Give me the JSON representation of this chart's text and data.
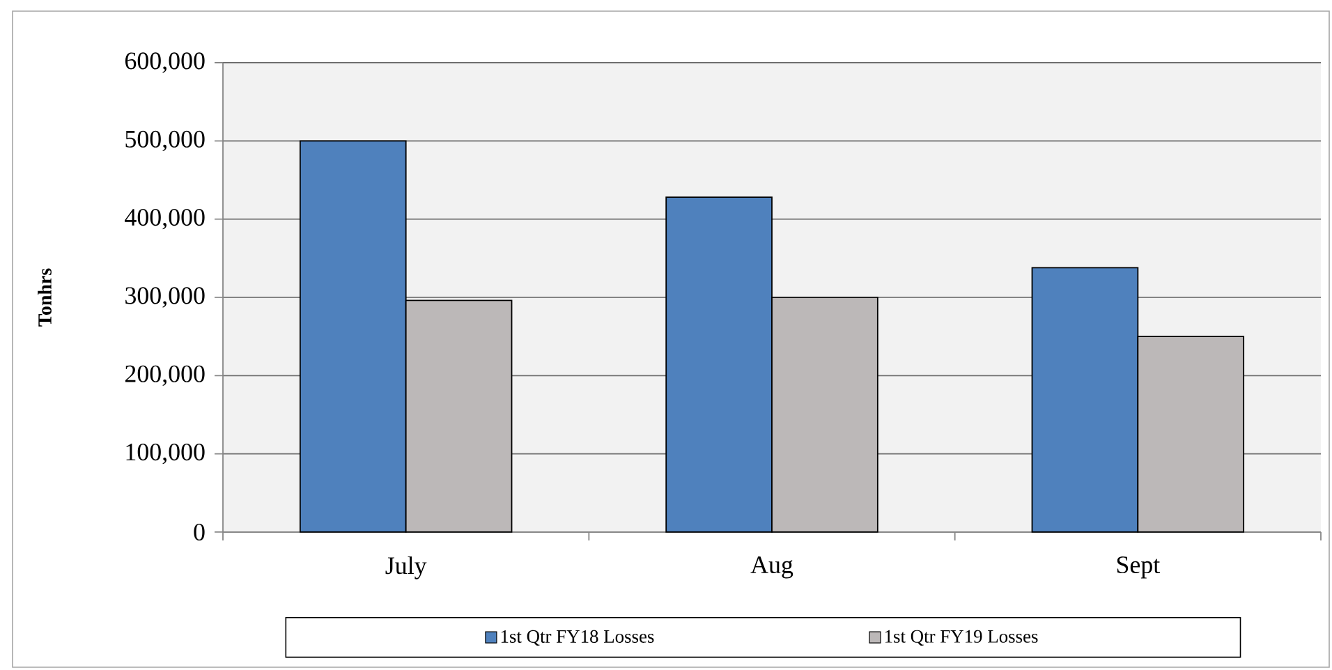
{
  "chart_data": {
    "type": "bar",
    "ylabel": "Tonhrs",
    "categories": [
      "July",
      "Aug",
      "Sept"
    ],
    "series": [
      {
        "name": "1st Qtr FY18 Losses",
        "color": "#4f81bd",
        "values": [
          500000,
          428000,
          338000
        ]
      },
      {
        "name": "1st Qtr FY19 Losses",
        "color": "#bcb8b8",
        "values": [
          296000,
          300000,
          250000
        ]
      }
    ],
    "ylim": [
      0,
      600000
    ],
    "yticks": [
      0,
      {
        "value": 100000,
        "label": "100,000"
      },
      {
        "value": 200000,
        "label": "200,000"
      },
      {
        "value": 300000,
        "label": "300,000"
      },
      {
        "value": 400000,
        "label": "400,000"
      },
      {
        "value": 500000,
        "label": "500,000"
      },
      {
        "value": 600000,
        "label": "600,000"
      }
    ],
    "grid": "y",
    "legend": "bottom"
  }
}
